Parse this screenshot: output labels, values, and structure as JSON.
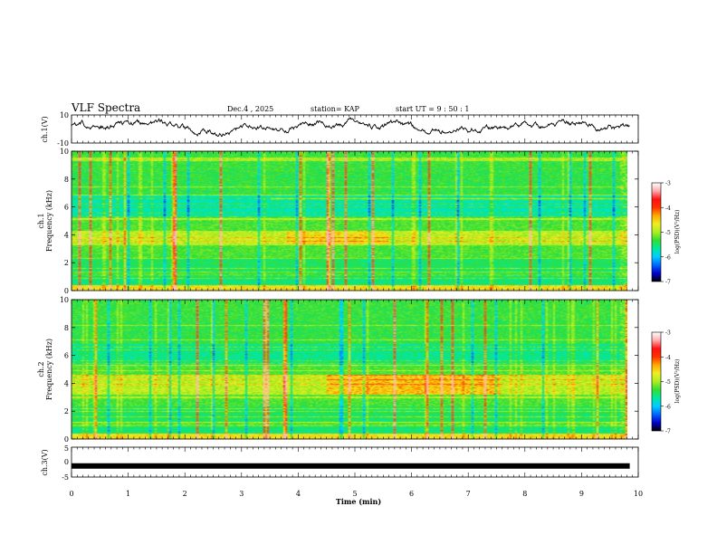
{
  "header": {
    "title": "VLF Spectra",
    "date": "Dec.4 , 2025",
    "station": "station= KAP",
    "start_ut": "start UT =  9 : 50 : 1"
  },
  "chart_data": [
    {
      "type": "line",
      "name": "ch1-waveform",
      "ylabel": "ch.1(V)",
      "ylim": [
        -10,
        10
      ],
      "yticks": [
        "10",
        "-10"
      ],
      "xlim": [
        0,
        10
      ],
      "approx_mean_v": 2,
      "approx_amplitude_v": 5
    },
    {
      "type": "heatmap",
      "name": "ch1-spectrogram",
      "ylabel": "ch.1\nFrequency (kHz)",
      "ylabel_lines": [
        "ch.1",
        "Frequency (kHz)"
      ],
      "ylim": [
        0,
        10
      ],
      "yticks": [
        "0",
        "2",
        "4",
        "6",
        "8",
        "10"
      ],
      "xlim": [
        0,
        9.85
      ],
      "enhanced_band_khz": [
        3.3,
        4.3
      ],
      "colorbar": {
        "label": "log(PSD)(V²/Hz)",
        "range": [
          -7,
          -3
        ],
        "ticks": [
          "-3",
          "-4",
          "-5",
          "-6",
          "-7"
        ]
      }
    },
    {
      "type": "heatmap",
      "name": "ch2-spectrogram",
      "ylabel": "ch.2\nFrequency (kHz)",
      "ylabel_lines": [
        "ch.2",
        "Frequency (kHz)"
      ],
      "ylim": [
        0,
        10
      ],
      "yticks": [
        "0",
        "2",
        "4",
        "6",
        "8",
        "10"
      ],
      "xlim": [
        0,
        9.85
      ],
      "enhanced_band_khz": [
        3.2,
        4.6
      ],
      "colorbar": {
        "label": "log(PSD)(V²/Hz)",
        "range": [
          -7,
          -3
        ],
        "ticks": [
          "-3",
          "-4",
          "-5",
          "-6",
          "-7"
        ]
      }
    },
    {
      "type": "line",
      "name": "ch3-waveform",
      "ylabel": "ch.3(V)",
      "ylim": [
        -5,
        5
      ],
      "yticks": [
        "5",
        "0",
        "-5"
      ],
      "xlim": [
        0,
        10
      ],
      "approx_mean_v": -1.3
    }
  ],
  "x_axis": {
    "label": "Time (min)",
    "ticks": [
      "0",
      "1",
      "2",
      "3",
      "4",
      "5",
      "6",
      "7",
      "8",
      "9",
      "10"
    ]
  },
  "colors": {
    "colormap": [
      "#000000",
      "#0000cc",
      "#0066ff",
      "#00ccff",
      "#00e8a0",
      "#33dd33",
      "#aaee22",
      "#eeee22",
      "#ffaa00",
      "#ff3300",
      "#ff1111",
      "#ffaaaa",
      "#ffffff"
    ],
    "ink": "#000000"
  }
}
